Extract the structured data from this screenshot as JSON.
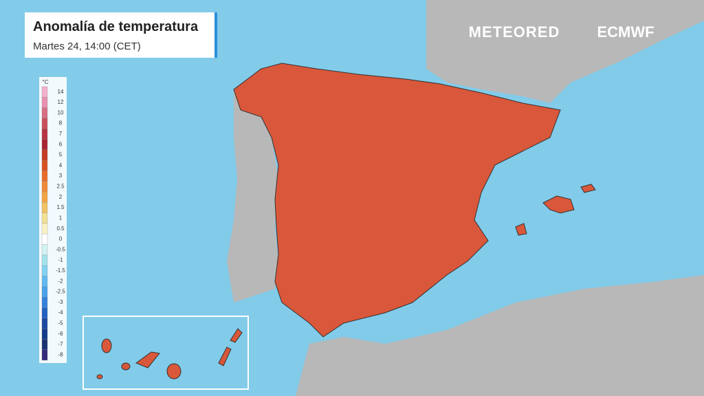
{
  "header": {
    "title": "Anomalía de temperatura",
    "subtitle": "Martes 24, 14:00 (CET)"
  },
  "logos": [
    "METEORED",
    "ECMWF"
  ],
  "legend": {
    "unit": "°C",
    "items": [
      {
        "label": "14",
        "color": "#f2b0cc"
      },
      {
        "label": "12",
        "color": "#e890ae"
      },
      {
        "label": "10",
        "color": "#d86e84"
      },
      {
        "label": "8",
        "color": "#c8505c"
      },
      {
        "label": "7",
        "color": "#b83444"
      },
      {
        "label": "6",
        "color": "#a82432"
      },
      {
        "label": "5",
        "color": "#c43a22"
      },
      {
        "label": "4",
        "color": "#d85222"
      },
      {
        "label": "3",
        "color": "#e86c2a"
      },
      {
        "label": "2.5",
        "color": "#f08a38"
      },
      {
        "label": "2",
        "color": "#f2a444"
      },
      {
        "label": "1.5",
        "color": "#f2c264"
      },
      {
        "label": "1",
        "color": "#f2e094"
      },
      {
        "label": "0.5",
        "color": "#f8f2c4"
      },
      {
        "label": "0",
        "color": "#ffffff"
      },
      {
        "label": "-0.5",
        "color": "#d2f2f2"
      },
      {
        "label": "-1",
        "color": "#a2e2ea"
      },
      {
        "label": "-1.5",
        "color": "#82d2f2"
      },
      {
        "label": "-2",
        "color": "#62baf2"
      },
      {
        "label": "-2.5",
        "color": "#4aa2ea"
      },
      {
        "label": "-3",
        "color": "#3282da"
      },
      {
        "label": "-4",
        "color": "#2262c2"
      },
      {
        "label": "-5",
        "color": "#1a4aa2"
      },
      {
        "label": "-6",
        "color": "#123a8a"
      },
      {
        "label": "-7",
        "color": "#1a3272"
      },
      {
        "label": "-8",
        "color": "#322a7a"
      }
    ]
  }
}
